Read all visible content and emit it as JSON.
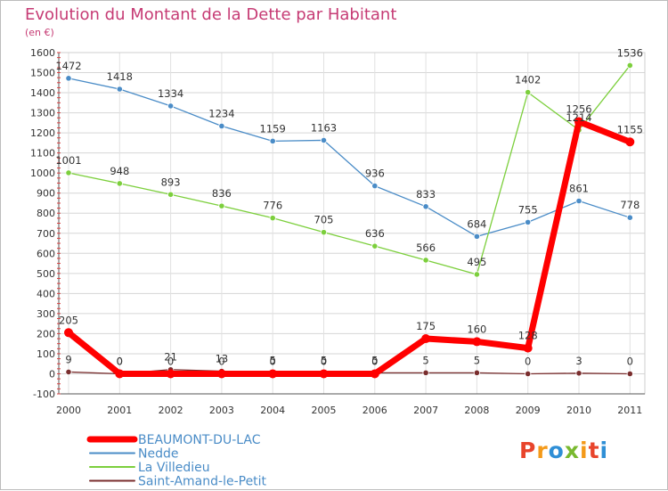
{
  "header": {
    "title": "Evolution du Montant de la Dette par Habitant",
    "unit": "(en €)"
  },
  "logo": {
    "text": "Proxiti"
  },
  "chart_data": {
    "type": "line",
    "title": "Evolution du Montant de la Dette par Habitant",
    "subtitle": "(en €)",
    "xlabel": "",
    "ylabel": "",
    "x": [
      "2000",
      "2001",
      "2002",
      "2003",
      "2004",
      "2005",
      "2006",
      "2007",
      "2008",
      "2009",
      "2010",
      "2011"
    ],
    "ylim": [
      -100,
      1600
    ],
    "yticks": [
      -100,
      0,
      100,
      200,
      300,
      400,
      500,
      600,
      700,
      800,
      900,
      1000,
      1100,
      1200,
      1300,
      1400,
      1500,
      1600
    ],
    "grid": true,
    "legend_position": "bottom-left",
    "series": [
      {
        "name": "BEAUMONT-DU-LAC",
        "color": "#ff0000",
        "values": [
          205,
          0,
          0,
          0,
          0,
          0,
          0,
          175,
          160,
          128,
          1256,
          1155
        ],
        "labels": [
          "205",
          "0",
          "0",
          "0",
          "0",
          "0",
          "0",
          "175",
          "160",
          "128",
          "1256",
          "1155"
        ]
      },
      {
        "name": "Nedde",
        "color": "#4a8cc7",
        "values": [
          1472,
          1418,
          1334,
          1234,
          1159,
          1163,
          936,
          833,
          684,
          755,
          861,
          778
        ],
        "labels": [
          "1472",
          "1418",
          "1334",
          "1234",
          "1159",
          "1163",
          "936",
          "833",
          "684",
          "755",
          "861",
          "778"
        ]
      },
      {
        "name": "La Villedieu",
        "color": "#7ccf3c",
        "values": [
          1001,
          948,
          893,
          836,
          776,
          705,
          636,
          566,
          495,
          1402,
          1214,
          1536
        ],
        "labels": [
          "1001",
          "948",
          "893",
          "836",
          "776",
          "705",
          "636",
          "566",
          "495",
          "1402",
          "1214",
          "1536"
        ]
      },
      {
        "name": "Saint-Amand-le-Petit",
        "color": "#7a2e2e",
        "values": [
          9,
          0,
          21,
          13,
          5,
          5,
          5,
          5,
          5,
          0,
          3,
          0
        ],
        "labels": [
          "9",
          "0",
          "21",
          "13",
          "5",
          "5",
          "5",
          "5",
          "5",
          "0",
          "3",
          "0"
        ]
      }
    ]
  }
}
